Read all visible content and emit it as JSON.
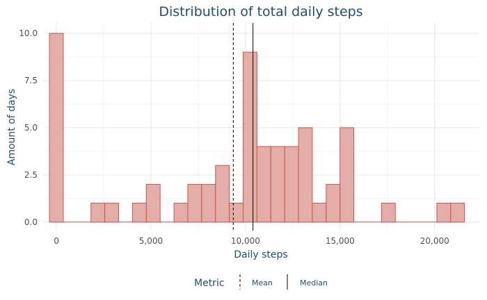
{
  "chart_data": {
    "type": "bar",
    "title": "Distribution of total daily steps",
    "xlabel": "Daily steps",
    "ylabel": "Amount of days",
    "xlim": [
      -700,
      22400
    ],
    "ylim": [
      -0.45,
      10.55
    ],
    "x_ticks": [
      0,
      5000,
      10000,
      15000,
      20000
    ],
    "x_tick_labels": [
      "0",
      "5,000",
      "10,000",
      "15,000",
      "20,000"
    ],
    "y_ticks": [
      0,
      2.5,
      5,
      7.5,
      10
    ],
    "y_tick_labels": [
      "0.0",
      "2.5",
      "5.0",
      "7.5",
      "10.0"
    ],
    "bin_width": 731.5,
    "bins": [
      {
        "x": 0,
        "count": 10
      },
      {
        "x": 2195,
        "count": 1
      },
      {
        "x": 2926,
        "count": 1
      },
      {
        "x": 4389,
        "count": 1
      },
      {
        "x": 5121,
        "count": 2
      },
      {
        "x": 6584,
        "count": 1
      },
      {
        "x": 7315,
        "count": 2
      },
      {
        "x": 8047,
        "count": 2
      },
      {
        "x": 8778,
        "count": 3
      },
      {
        "x": 9510,
        "count": 1
      },
      {
        "x": 10241,
        "count": 9
      },
      {
        "x": 10973,
        "count": 4
      },
      {
        "x": 11704,
        "count": 4
      },
      {
        "x": 12436,
        "count": 4
      },
      {
        "x": 13167,
        "count": 5
      },
      {
        "x": 13899,
        "count": 1
      },
      {
        "x": 14630,
        "count": 2
      },
      {
        "x": 15362,
        "count": 5
      },
      {
        "x": 17556,
        "count": 1
      },
      {
        "x": 20482,
        "count": 1
      },
      {
        "x": 21213,
        "count": 1
      }
    ],
    "reference_lines": [
      {
        "name": "Mean",
        "value": 9354,
        "style": "dashed"
      },
      {
        "name": "Median",
        "value": 10395,
        "style": "solid"
      }
    ],
    "legend": {
      "title": "Metric",
      "position": "bottom"
    },
    "grid": true,
    "colors": {
      "fill": "#e4aea8",
      "stroke": "#c8554b",
      "text": "#1f4e6b"
    }
  }
}
